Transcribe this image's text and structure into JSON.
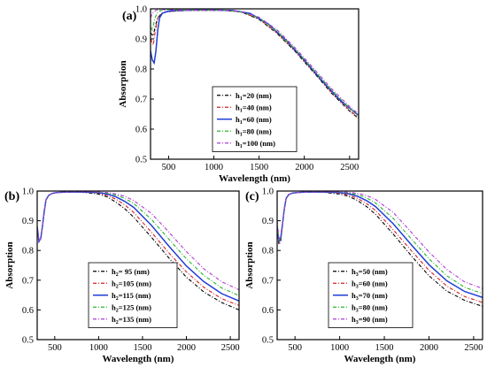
{
  "chart_data": [
    {
      "type": "line",
      "panel_label": "(a)",
      "xlabel": "Wavelength (nm)",
      "ylabel": "Absorption",
      "xlim": [
        300,
        2600
      ],
      "ylim": [
        0.5,
        1.0
      ],
      "xticks": [
        500,
        1000,
        1500,
        2000,
        2500
      ],
      "yticks": [
        0.5,
        0.6,
        0.7,
        0.8,
        0.9,
        1.0
      ],
      "grid": false,
      "legend_position": "center-right",
      "legend_var": "h",
      "legend_sub": "1",
      "series": [
        {
          "name": "=20  (nm)",
          "color": "#000000",
          "dash": "4,2,1,2",
          "x": [
            300,
            330,
            350,
            380,
            420,
            480,
            550,
            700,
            900,
            1100,
            1300,
            1500,
            1700,
            1900,
            2100,
            2300,
            2500,
            2600
          ],
          "y": [
            0.92,
            0.91,
            0.94,
            0.97,
            0.985,
            0.99,
            0.992,
            0.995,
            0.995,
            0.995,
            0.99,
            0.965,
            0.918,
            0.858,
            0.79,
            0.72,
            0.66,
            0.635
          ]
        },
        {
          "name": "=40  (nm)",
          "color": "#d62020",
          "dash": "4,2,1,2",
          "x": [
            300,
            330,
            350,
            380,
            420,
            480,
            550,
            700,
            900,
            1100,
            1300,
            1500,
            1700,
            1900,
            2100,
            2300,
            2500,
            2600
          ],
          "y": [
            0.9,
            0.88,
            0.92,
            0.97,
            0.985,
            0.99,
            0.992,
            0.995,
            0.995,
            0.995,
            0.99,
            0.967,
            0.92,
            0.86,
            0.792,
            0.723,
            0.663,
            0.638
          ]
        },
        {
          "name": "=60  (nm)",
          "color": "#1f3fd6",
          "dash": "",
          "x": [
            300,
            320,
            340,
            360,
            380,
            400,
            430,
            470,
            520,
            600,
            800,
            1000,
            1200,
            1400,
            1600,
            1800,
            2000,
            2200,
            2400,
            2600
          ],
          "y": [
            0.86,
            0.83,
            0.82,
            0.86,
            0.93,
            0.97,
            0.985,
            0.99,
            0.993,
            0.995,
            0.996,
            0.996,
            0.995,
            0.985,
            0.95,
            0.895,
            0.83,
            0.76,
            0.695,
            0.645
          ]
        },
        {
          "name": "=80  (nm)",
          "color": "#2ab52a",
          "dash": "4,2,1,2",
          "x": [
            300,
            320,
            350,
            380,
            420,
            480,
            550,
            700,
            900,
            1100,
            1300,
            1500,
            1700,
            1900,
            2100,
            2300,
            2500,
            2600
          ],
          "y": [
            0.94,
            0.93,
            0.97,
            0.99,
            0.995,
            0.997,
            0.997,
            0.996,
            0.996,
            0.996,
            0.99,
            0.97,
            0.925,
            0.865,
            0.798,
            0.73,
            0.67,
            0.645
          ]
        },
        {
          "name": "=100 (nm)",
          "color": "#b03ad6",
          "dash": "4,2,1,2",
          "x": [
            300,
            320,
            340,
            360,
            380,
            420,
            480,
            550,
            700,
            900,
            1100,
            1300,
            1500,
            1700,
            1900,
            2100,
            2300,
            2500,
            2600
          ],
          "y": [
            0.97,
            0.985,
            0.99,
            0.995,
            0.997,
            0.998,
            0.997,
            0.997,
            0.996,
            0.996,
            0.996,
            0.992,
            0.972,
            0.93,
            0.87,
            0.803,
            0.735,
            0.675,
            0.65
          ]
        }
      ]
    },
    {
      "type": "line",
      "panel_label": "(b)",
      "xlabel": "Wavelength (nm)",
      "ylabel": "Absorption",
      "xlim": [
        300,
        2600
      ],
      "ylim": [
        0.5,
        1.0
      ],
      "xticks": [
        500,
        1000,
        1500,
        2000,
        2500
      ],
      "yticks": [
        0.5,
        0.6,
        0.7,
        0.8,
        0.9,
        1.0
      ],
      "grid": false,
      "legend_position": "center-left",
      "legend_var": "h",
      "legend_sub": "2",
      "series": [
        {
          "name": "= 95 (nm)",
          "color": "#000000",
          "dash": "4,2,1,2",
          "x": [
            300,
            320,
            340,
            360,
            380,
            400,
            430,
            470,
            520,
            600,
            800,
            1000,
            1100,
            1200,
            1300,
            1400,
            1600,
            1800,
            2000,
            2200,
            2400,
            2600
          ],
          "y": [
            0.88,
            0.83,
            0.84,
            0.88,
            0.93,
            0.97,
            0.985,
            0.992,
            0.995,
            0.996,
            0.996,
            0.99,
            0.98,
            0.962,
            0.94,
            0.912,
            0.845,
            0.775,
            0.71,
            0.66,
            0.625,
            0.6
          ]
        },
        {
          "name": "=105 (nm)",
          "color": "#d62020",
          "dash": "4,2,1,2",
          "x": [
            300,
            320,
            340,
            360,
            380,
            400,
            430,
            470,
            520,
            600,
            800,
            1000,
            1100,
            1200,
            1300,
            1400,
            1600,
            1800,
            2000,
            2200,
            2400,
            2600
          ],
          "y": [
            0.88,
            0.83,
            0.84,
            0.88,
            0.93,
            0.97,
            0.985,
            0.992,
            0.995,
            0.996,
            0.997,
            0.993,
            0.985,
            0.972,
            0.953,
            0.928,
            0.862,
            0.792,
            0.728,
            0.676,
            0.638,
            0.615
          ]
        },
        {
          "name": "=115 (nm)",
          "color": "#1f3fd6",
          "dash": "",
          "x": [
            300,
            320,
            340,
            360,
            380,
            400,
            430,
            470,
            520,
            600,
            800,
            1000,
            1100,
            1200,
            1300,
            1400,
            1600,
            1800,
            2000,
            2200,
            2400,
            2600
          ],
          "y": [
            0.88,
            0.83,
            0.84,
            0.88,
            0.93,
            0.97,
            0.985,
            0.992,
            0.995,
            0.996,
            0.997,
            0.995,
            0.99,
            0.98,
            0.965,
            0.945,
            0.885,
            0.815,
            0.748,
            0.695,
            0.655,
            0.63
          ]
        },
        {
          "name": "=125 (nm)",
          "color": "#2ab52a",
          "dash": "4,2,1,2",
          "x": [
            300,
            320,
            340,
            360,
            380,
            400,
            430,
            470,
            520,
            600,
            800,
            1000,
            1100,
            1200,
            1300,
            1400,
            1600,
            1800,
            2000,
            2200,
            2400,
            2600
          ],
          "y": [
            0.88,
            0.83,
            0.84,
            0.88,
            0.93,
            0.97,
            0.985,
            0.992,
            0.995,
            0.996,
            0.997,
            0.996,
            0.993,
            0.986,
            0.975,
            0.958,
            0.905,
            0.838,
            0.772,
            0.716,
            0.674,
            0.648
          ]
        },
        {
          "name": "=135 (nm)",
          "color": "#b03ad6",
          "dash": "4,2,1,2",
          "x": [
            300,
            320,
            340,
            360,
            380,
            400,
            430,
            470,
            520,
            600,
            800,
            1000,
            1100,
            1200,
            1300,
            1400,
            1600,
            1800,
            2000,
            2200,
            2400,
            2600
          ],
          "y": [
            0.88,
            0.83,
            0.84,
            0.88,
            0.93,
            0.97,
            0.985,
            0.992,
            0.995,
            0.996,
            0.997,
            0.997,
            0.995,
            0.99,
            0.982,
            0.968,
            0.925,
            0.862,
            0.796,
            0.738,
            0.695,
            0.668
          ]
        }
      ]
    },
    {
      "type": "line",
      "panel_label": "(c)",
      "xlabel": "Wavelength (nm)",
      "ylabel": "Absorption",
      "xlim": [
        300,
        2600
      ],
      "ylim": [
        0.5,
        1.0
      ],
      "xticks": [
        500,
        1000,
        1500,
        2000,
        2500
      ],
      "yticks": [
        0.5,
        0.6,
        0.7,
        0.8,
        0.9,
        1.0
      ],
      "grid": false,
      "legend_position": "center-left",
      "legend_var": "h",
      "legend_sub": "3",
      "series": [
        {
          "name": "=50 (nm)",
          "color": "#000000",
          "dash": "4,2,1,2",
          "x": [
            300,
            320,
            340,
            360,
            380,
            400,
            430,
            470,
            520,
            600,
            800,
            1000,
            1100,
            1200,
            1300,
            1400,
            1600,
            1800,
            2000,
            2200,
            2400,
            2600
          ],
          "y": [
            0.86,
            0.82,
            0.83,
            0.89,
            0.94,
            0.975,
            0.988,
            0.993,
            0.995,
            0.996,
            0.996,
            0.99,
            0.982,
            0.968,
            0.948,
            0.922,
            0.855,
            0.783,
            0.715,
            0.663,
            0.632,
            0.612
          ]
        },
        {
          "name": "=60 (nm)",
          "color": "#d62020",
          "dash": "4,2,1,2",
          "x": [
            300,
            320,
            340,
            360,
            380,
            400,
            430,
            470,
            520,
            600,
            800,
            1000,
            1100,
            1200,
            1300,
            1400,
            1600,
            1800,
            2000,
            2200,
            2400,
            2600
          ],
          "y": [
            0.87,
            0.825,
            0.835,
            0.89,
            0.94,
            0.975,
            0.988,
            0.993,
            0.995,
            0.996,
            0.997,
            0.993,
            0.987,
            0.975,
            0.958,
            0.935,
            0.87,
            0.8,
            0.733,
            0.68,
            0.645,
            0.625
          ]
        },
        {
          "name": "=70 (nm)",
          "color": "#1f3fd6",
          "dash": "",
          "x": [
            300,
            320,
            340,
            360,
            380,
            400,
            430,
            470,
            520,
            600,
            800,
            1000,
            1100,
            1200,
            1300,
            1400,
            1600,
            1800,
            2000,
            2200,
            2400,
            2600
          ],
          "y": [
            0.88,
            0.83,
            0.84,
            0.89,
            0.94,
            0.975,
            0.988,
            0.993,
            0.995,
            0.996,
            0.997,
            0.995,
            0.991,
            0.982,
            0.968,
            0.948,
            0.89,
            0.82,
            0.752,
            0.698,
            0.662,
            0.642
          ]
        },
        {
          "name": "=80 (nm)",
          "color": "#2ab52a",
          "dash": "4,2,1,2",
          "x": [
            300,
            320,
            340,
            360,
            380,
            400,
            430,
            470,
            520,
            600,
            800,
            1000,
            1100,
            1200,
            1300,
            1400,
            1600,
            1800,
            2000,
            2200,
            2400,
            2600
          ],
          "y": [
            0.89,
            0.835,
            0.845,
            0.89,
            0.94,
            0.975,
            0.988,
            0.993,
            0.995,
            0.996,
            0.997,
            0.996,
            0.994,
            0.988,
            0.977,
            0.96,
            0.908,
            0.84,
            0.772,
            0.715,
            0.676,
            0.655
          ]
        },
        {
          "name": "=90 (nm)",
          "color": "#b03ad6",
          "dash": "4,2,1,2",
          "x": [
            300,
            320,
            340,
            360,
            380,
            400,
            430,
            470,
            520,
            600,
            800,
            1000,
            1100,
            1200,
            1300,
            1400,
            1600,
            1800,
            2000,
            2200,
            2400,
            2600
          ],
          "y": [
            0.9,
            0.84,
            0.85,
            0.89,
            0.94,
            0.975,
            0.988,
            0.993,
            0.995,
            0.996,
            0.997,
            0.997,
            0.996,
            0.992,
            0.985,
            0.972,
            0.928,
            0.862,
            0.795,
            0.736,
            0.694,
            0.672
          ]
        }
      ]
    }
  ]
}
